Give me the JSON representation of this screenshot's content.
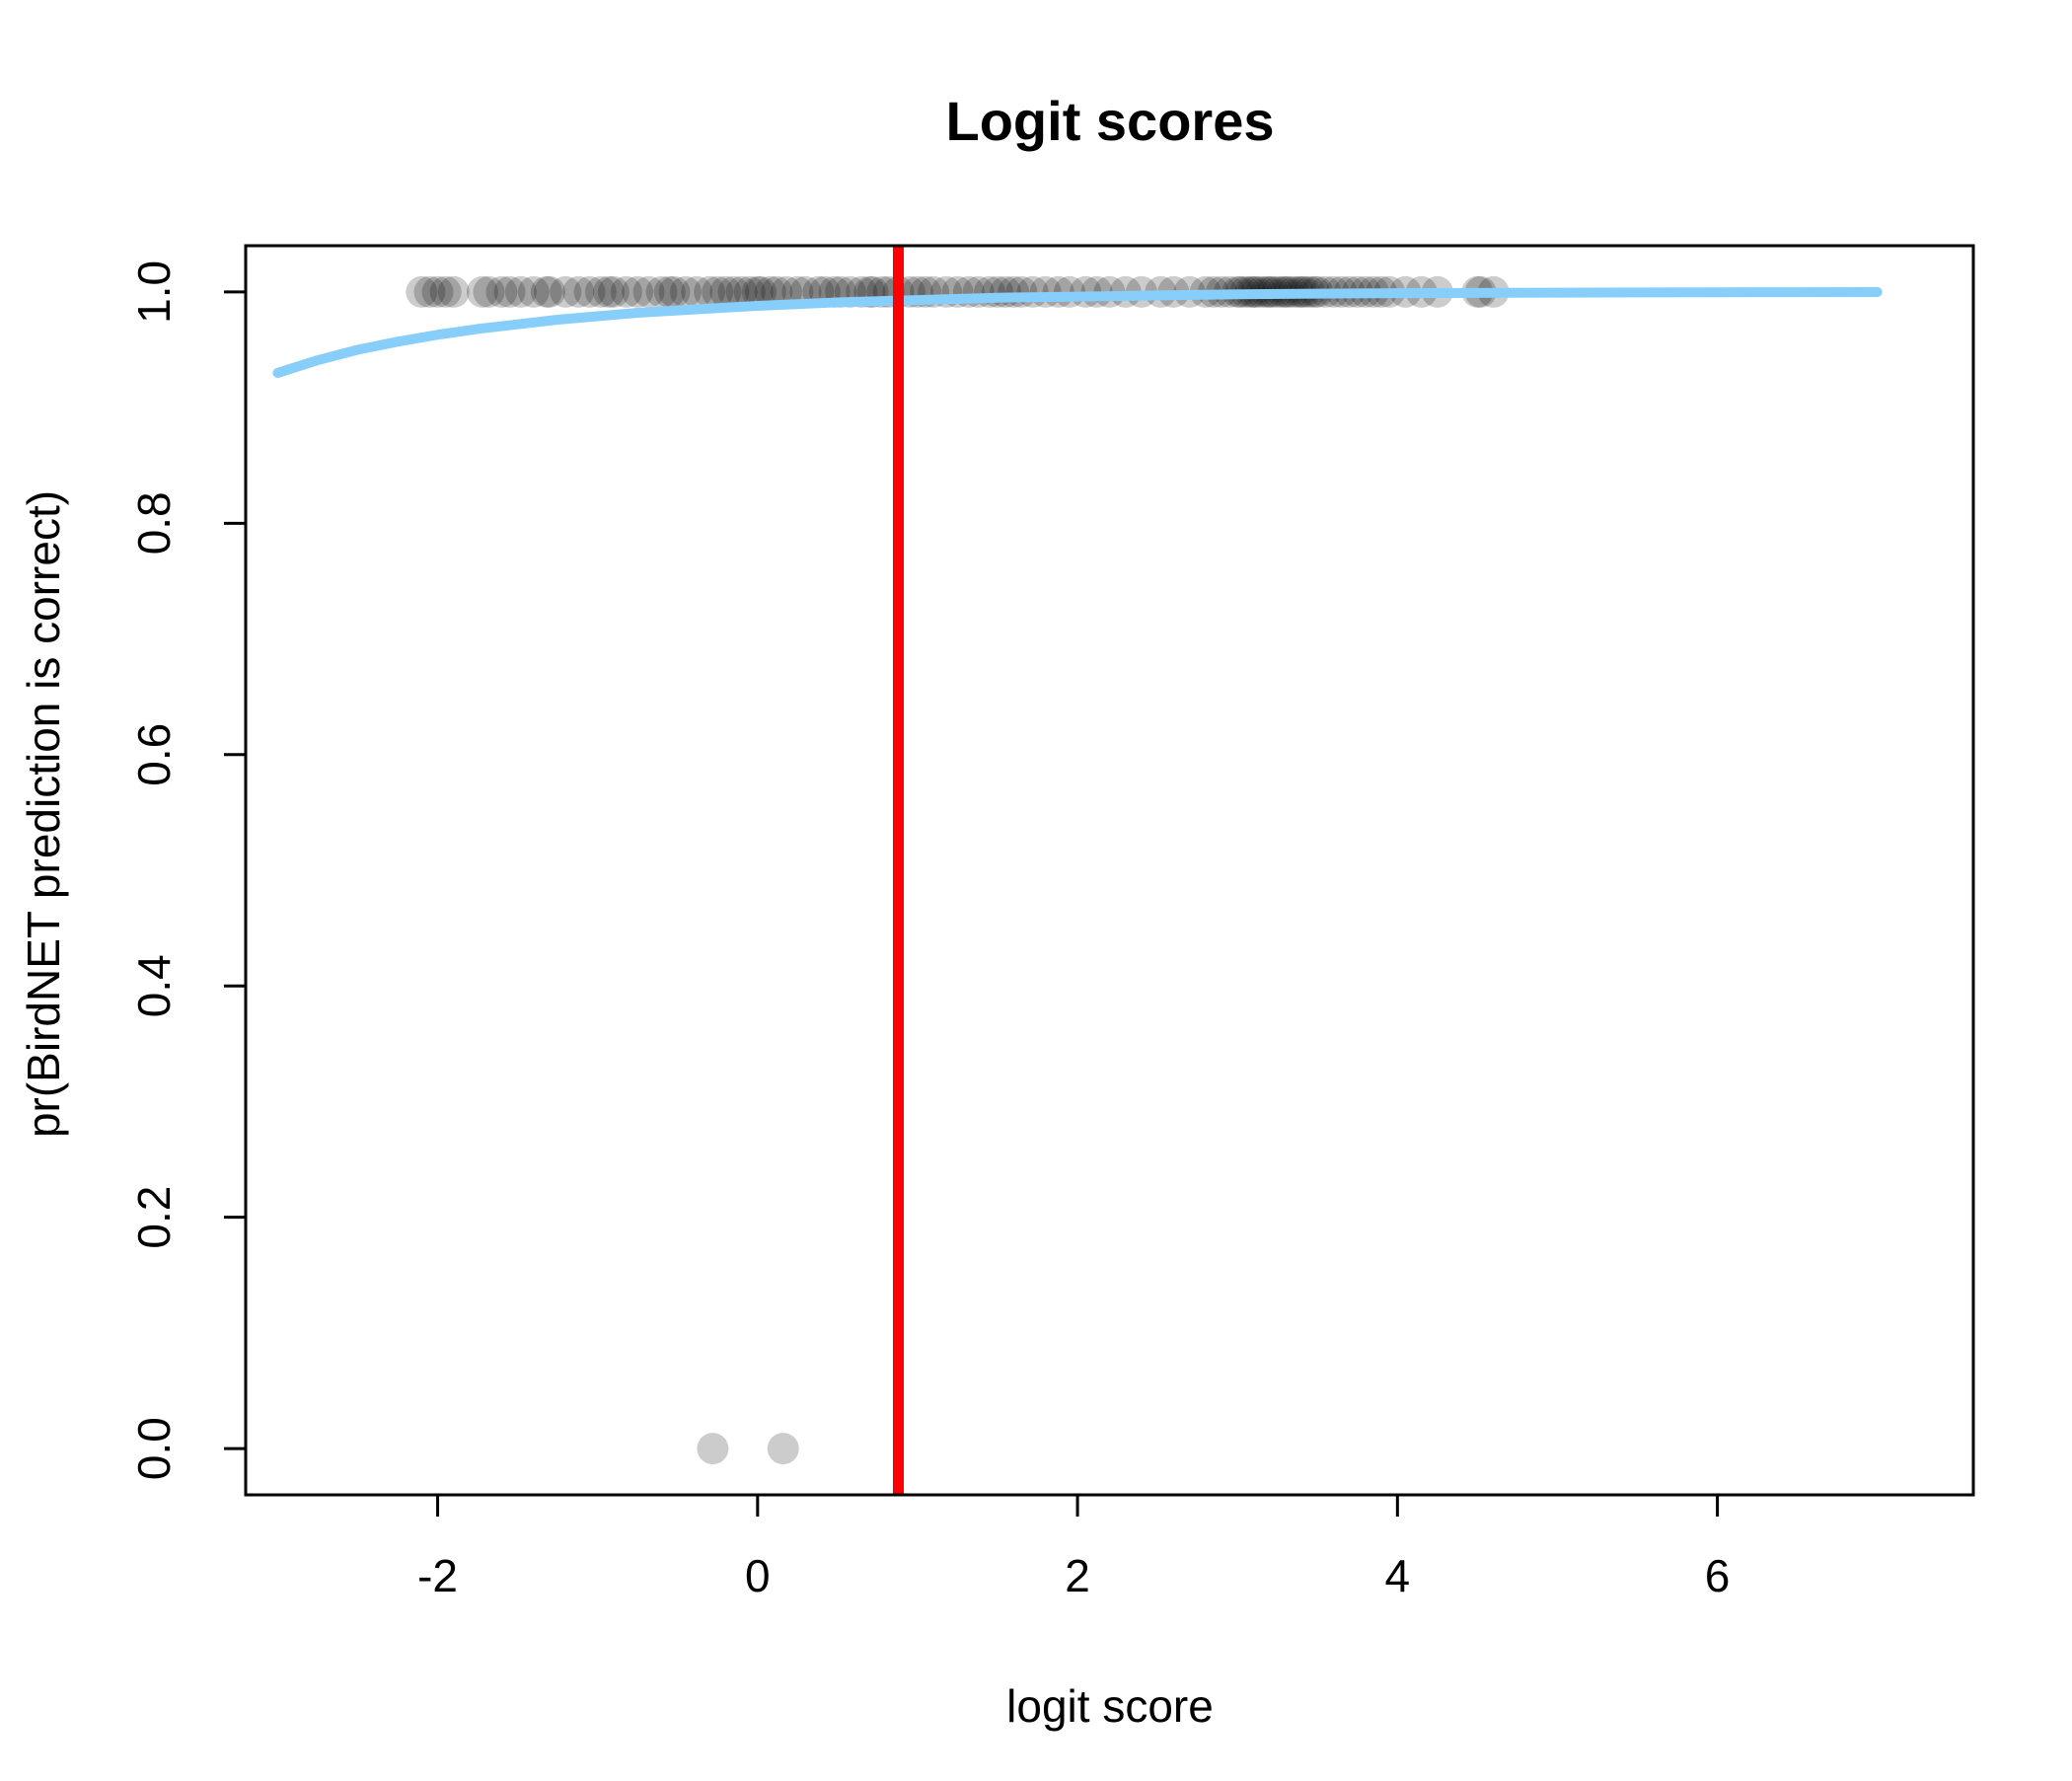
{
  "chart_data": {
    "type": "scatter",
    "title": "Logit scores",
    "xlabel": "logit score",
    "ylabel": "pr(BirdNET prediction is correct)",
    "xlim": [
      -3.2,
      7.6
    ],
    "ylim": [
      -0.04,
      1.04
    ],
    "x_ticks": [
      -2,
      0,
      2,
      4,
      6
    ],
    "x_tick_labels": [
      "-2",
      "0",
      "2",
      "4",
      "6"
    ],
    "y_ticks": [
      0.0,
      0.2,
      0.4,
      0.6,
      0.8,
      1.0
    ],
    "y_tick_labels": [
      "0.0",
      "0.2",
      "0.4",
      "0.6",
      "0.8",
      "1.0"
    ],
    "grid": false,
    "legend": "none",
    "series": [
      {
        "type": "scatter",
        "color": "#000000",
        "opacity": 0.2,
        "x": [
          -2.1,
          -2.05,
          -2.0,
          -1.95,
          -1.9,
          -1.72,
          -1.68,
          -1.6,
          -1.55,
          -1.48,
          -1.4,
          -1.32,
          -1.3,
          -1.2,
          -1.12,
          -1.05,
          -0.98,
          -0.93,
          -0.9,
          -0.82,
          -0.75,
          -0.68,
          -0.6,
          -0.55,
          -0.52,
          -0.45,
          -0.38,
          -0.3,
          -0.25,
          -0.2,
          -0.15,
          -0.1,
          -0.05,
          0.0,
          0.02,
          0.08,
          0.12,
          0.18,
          0.25,
          0.3,
          0.38,
          0.42,
          0.48,
          0.52,
          0.58,
          0.65,
          0.7,
          0.72,
          0.78,
          0.82,
          0.88,
          0.95,
          1.0,
          1.05,
          1.1,
          1.18,
          1.25,
          1.32,
          1.38,
          1.45,
          1.5,
          1.55,
          1.6,
          1.65,
          1.72,
          1.8,
          1.88,
          1.95,
          2.05,
          2.12,
          2.2,
          2.3,
          2.4,
          2.52,
          2.6,
          2.7,
          2.8,
          2.85,
          2.9,
          2.95,
          3.0,
          3.02,
          3.05,
          3.08,
          3.1,
          3.12,
          3.15,
          3.18,
          3.2,
          3.22,
          3.25,
          3.28,
          3.3,
          3.32,
          3.35,
          3.38,
          3.4,
          3.42,
          3.45,
          3.48,
          3.5,
          3.55,
          3.6,
          3.65,
          3.7,
          3.75,
          3.8,
          3.85,
          3.9,
          3.95,
          4.05,
          4.15,
          4.25,
          4.5,
          4.52,
          4.6,
          -0.28,
          0.16
        ],
        "y": [
          1,
          1,
          1,
          1,
          1,
          1,
          1,
          1,
          1,
          1,
          1,
          1,
          1,
          1,
          1,
          1,
          1,
          1,
          1,
          1,
          1,
          1,
          1,
          1,
          1,
          1,
          1,
          1,
          1,
          1,
          1,
          1,
          1,
          1,
          1,
          1,
          1,
          1,
          1,
          1,
          1,
          1,
          1,
          1,
          1,
          1,
          1,
          1,
          1,
          1,
          1,
          1,
          1,
          1,
          1,
          1,
          1,
          1,
          1,
          1,
          1,
          1,
          1,
          1,
          1,
          1,
          1,
          1,
          1,
          1,
          1,
          1,
          1,
          1,
          1,
          1,
          1,
          1,
          1,
          1,
          1,
          1,
          1,
          1,
          1,
          1,
          1,
          1,
          1,
          1,
          1,
          1,
          1,
          1,
          1,
          1,
          1,
          1,
          1,
          1,
          1,
          1,
          1,
          1,
          1,
          1,
          1,
          1,
          1,
          1,
          1,
          1,
          1,
          1,
          1,
          1,
          0,
          0
        ]
      },
      {
        "type": "line",
        "color": "#87CEFA",
        "x": [
          -3.0,
          -2.75,
          -2.5,
          -2.25,
          -2.0,
          -1.75,
          -1.5,
          -1.25,
          -1.0,
          -0.75,
          -0.5,
          -0.25,
          0.0,
          0.5,
          1.0,
          1.5,
          2.0,
          2.5,
          3.0,
          3.5,
          4.0,
          4.5,
          5.0,
          5.5,
          6.0,
          6.5,
          7.0
        ],
        "y": [
          0.93,
          0.941,
          0.95,
          0.957,
          0.963,
          0.968,
          0.972,
          0.976,
          0.979,
          0.982,
          0.984,
          0.986,
          0.988,
          0.991,
          0.993,
          0.995,
          0.996,
          0.997,
          0.998,
          0.9985,
          0.9989,
          0.9992,
          0.9994,
          0.9996,
          0.9997,
          0.9998,
          0.9999
        ]
      },
      {
        "type": "vline",
        "color": "#FF0000",
        "x": 0.88
      }
    ]
  }
}
